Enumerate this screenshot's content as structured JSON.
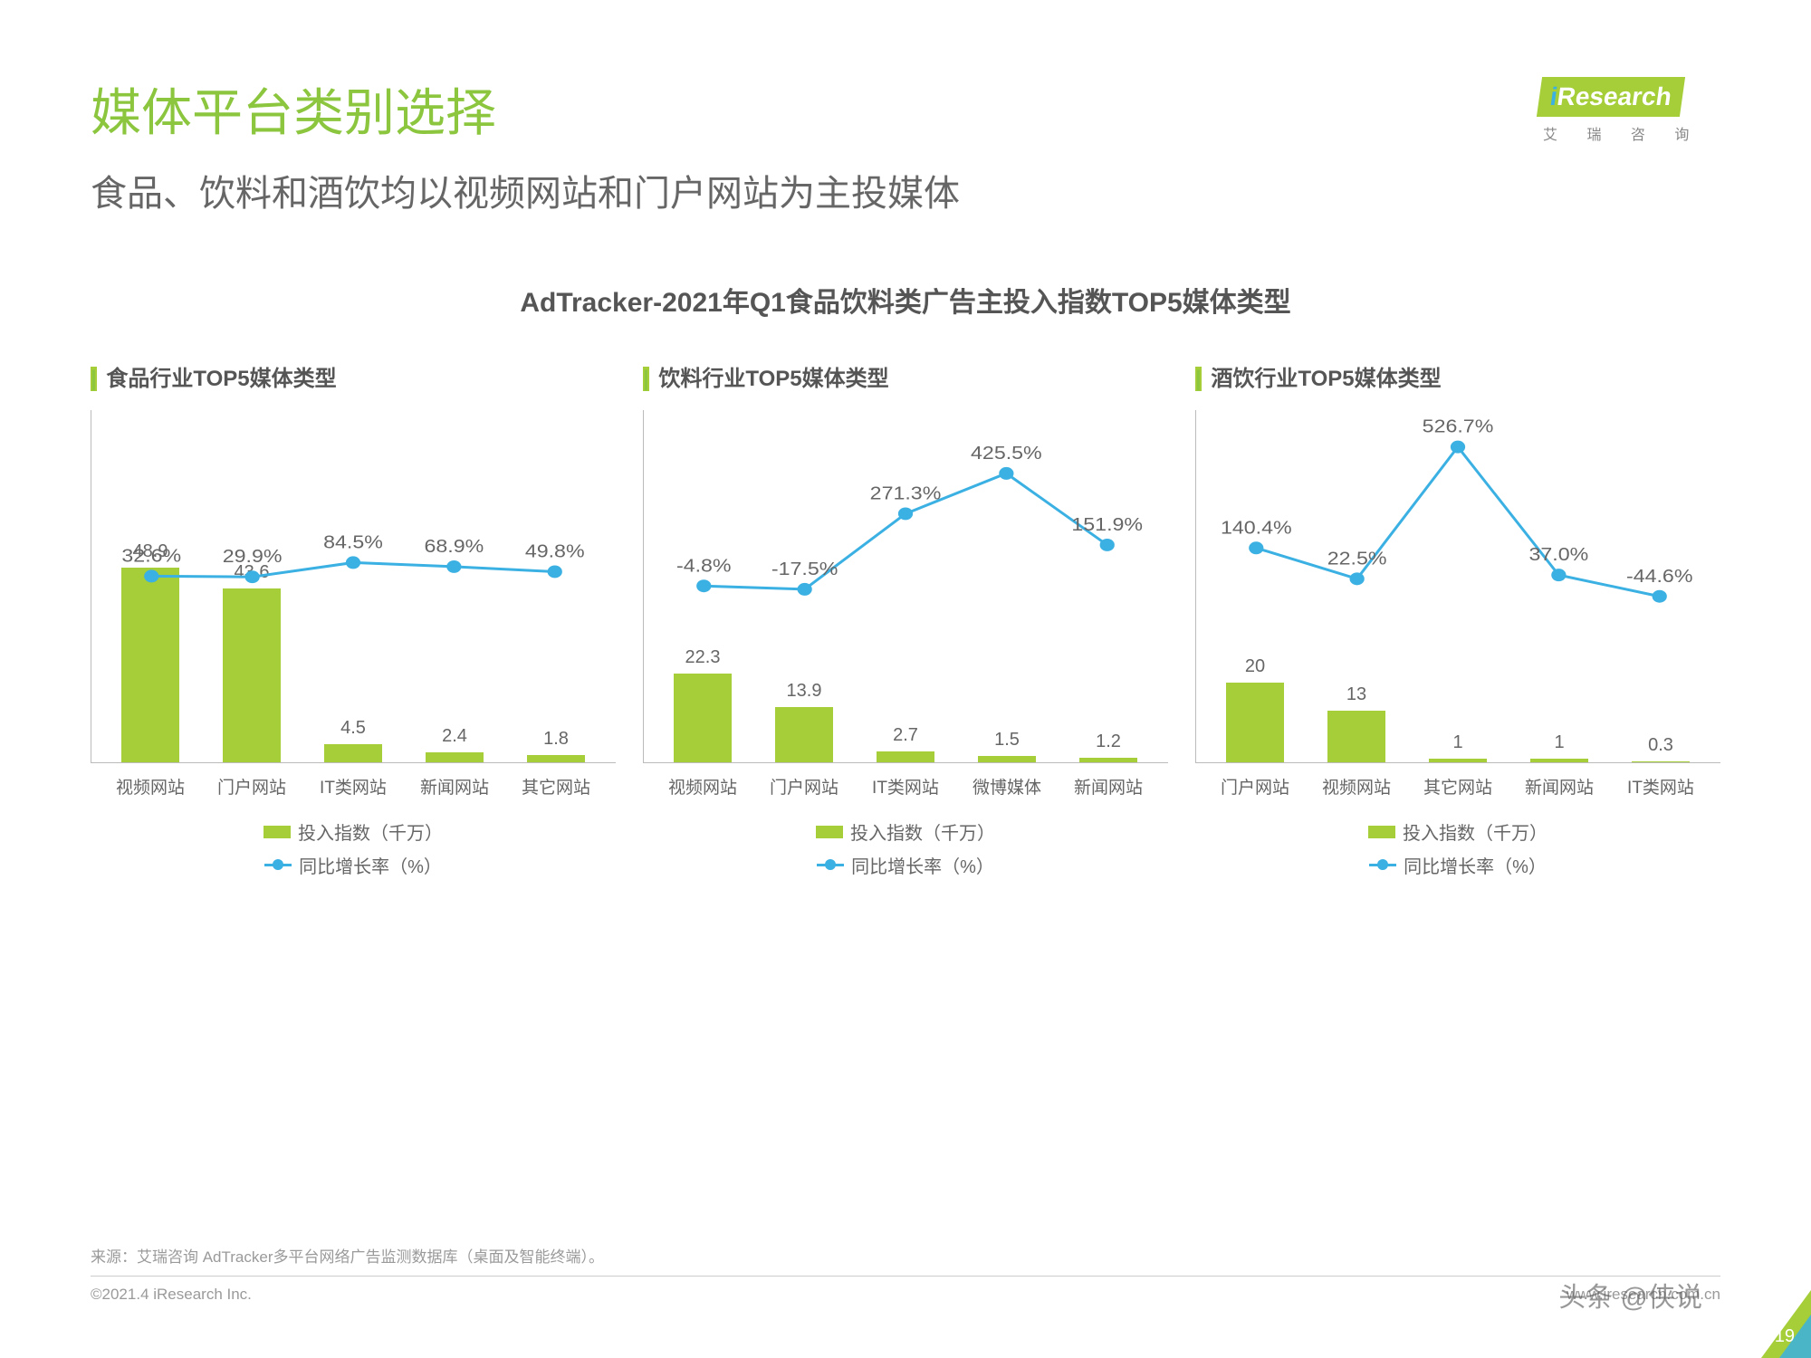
{
  "logo": {
    "brand": "Research",
    "sub_cn": "艾 瑞 咨 询"
  },
  "title": "媒体平台类别选择",
  "subtitle": "食品、饮料和酒饮均以视频网站和门户网站为主投媒体",
  "chart_main_title": "AdTracker-2021年Q1食品饮料类广告主投入指数TOP5媒体类型",
  "colors": {
    "bar": "#a5ce39",
    "line": "#3bb0e2",
    "text": "#666666",
    "title_green": "#8cc63f",
    "axis": "#bbbbbb"
  },
  "legend": {
    "bar_label": "投入指数（千万）",
    "line_label": "同比增长率（%）"
  },
  "bar_y_max": 55,
  "charts": [
    {
      "panel_title": "食品行业TOP5媒体类型",
      "categories": [
        "视频网站",
        "门户网站",
        "IT类网站",
        "新闻网站",
        "其它网站"
      ],
      "bar_values": [
        48.9,
        43.6,
        4.5,
        2.4,
        1.8
      ],
      "line_values": [
        32.6,
        29.9,
        84.5,
        68.9,
        49.8
      ],
      "line_labels": [
        "32.6%",
        "29.9%",
        "84.5%",
        "68.9%",
        "49.8%"
      ],
      "line_y_range": [
        -100,
        600
      ]
    },
    {
      "panel_title": "饮料行业TOP5媒体类型",
      "categories": [
        "视频网站",
        "门户网站",
        "IT类网站",
        "微博媒体",
        "新闻网站"
      ],
      "bar_values": [
        22.3,
        13.9,
        2.7,
        1.5,
        1.2
      ],
      "line_values": [
        -4.8,
        -17.5,
        271.3,
        425.5,
        151.9
      ],
      "line_labels": [
        "-4.8%",
        "-17.5%",
        "271.3%",
        "425.5%",
        "151.9%"
      ],
      "line_y_range": [
        -100,
        600
      ]
    },
    {
      "panel_title": "酒饮行业TOP5媒体类型",
      "categories": [
        "门户网站",
        "视频网站",
        "其它网站",
        "新闻网站",
        "IT类网站"
      ],
      "bar_values": [
        20.0,
        13.0,
        1.0,
        1.0,
        0.3
      ],
      "line_values": [
        140.4,
        22.5,
        526.7,
        37.0,
        -44.6
      ],
      "line_labels": [
        "140.4%",
        "22.5%",
        "526.7%",
        "37.0%",
        "-44.6%"
      ],
      "line_y_range": [
        -100,
        600
      ]
    }
  ],
  "source": "来源：艾瑞咨询 AdTracker多平台网络广告监测数据库（桌面及智能终端）。",
  "copyright": "©2021.4 iResearch Inc.",
  "website": "www.iresearch.com.cn",
  "page_number": "19",
  "watermark": "头条 @侠说"
}
